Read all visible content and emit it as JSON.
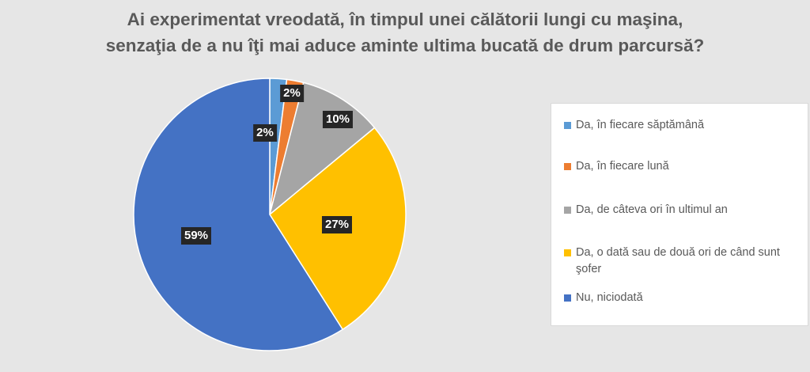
{
  "chart_data": {
    "type": "pie",
    "title_lines": [
      "Ai experimentat vreodată, în timpul unei călătorii lungi cu maşina,",
      "senzaţia de a nu îţi mai aduce aminte ultima bucată de drum parcursă?"
    ],
    "categories": [
      "Da, în fiecare săptămână",
      "Da, în fiecare lună",
      "Da, de câteva ori în ultimul an",
      "Da, o dată sau de două ori de când sunt şofer",
      "Nu, niciodată"
    ],
    "values": [
      2,
      2,
      10,
      27,
      59
    ],
    "data_labels": [
      "2%",
      "2%",
      "10%",
      "27%",
      "59%"
    ],
    "colors": [
      "#5b9bd5",
      "#ed7d31",
      "#a5a5a5",
      "#ffc000",
      "#4472c4"
    ],
    "legend_position": "right",
    "start_angle": "12 o'clock",
    "direction": "clockwise"
  }
}
